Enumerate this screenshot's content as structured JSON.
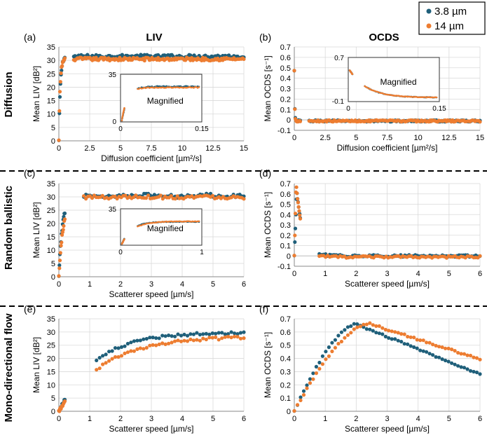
{
  "legend": [
    {
      "label": "3.8 µm",
      "color": "#1f5f7a"
    },
    {
      "label": "14 µm",
      "color": "#ed7d31"
    }
  ],
  "column_titles": {
    "liv": "LIV",
    "ocds": "OCDS"
  },
  "row_titles": [
    "Diffusion",
    "Random ballistic",
    "Mono-directional flow"
  ],
  "inset_label": "Magnified",
  "chart_data": [
    {
      "id": "a",
      "type": "scatter",
      "panel_label": "(a)",
      "row": 0,
      "col": 0,
      "xlabel": "Diffusion coefficient [µm²/s]",
      "ylabel": "Mean LIV [dB²]",
      "xlim": [
        0,
        15
      ],
      "ylim": [
        0,
        35
      ],
      "xticks": [
        "0",
        "2.5",
        "5",
        "7.5",
        "10",
        "12.5",
        "15"
      ],
      "xtick_values": [
        0,
        2.5,
        5,
        7.5,
        10,
        12.5,
        15
      ],
      "yticks": [
        "0",
        "5",
        "10",
        "15",
        "20",
        "25",
        "30",
        "35"
      ],
      "ytick_values": [
        0,
        5,
        10,
        15,
        20,
        25,
        30,
        35
      ],
      "series": [
        {
          "name": "3.8 µm",
          "curve": "sat",
          "params": [
            31.5,
            0.12,
            0.07,
            0
          ],
          "start": 0,
          "n": 150,
          "noise": 0.6
        },
        {
          "name": "14 µm",
          "curve": "sat",
          "params": [
            30.5,
            0.1,
            0,
            0
          ],
          "start": 0,
          "n": 150,
          "noise": 0.6
        }
      ],
      "inset": {
        "xlim": [
          0,
          0.15
        ],
        "ylim": [
          0,
          35
        ],
        "xticks": [
          "0",
          "0.15"
        ],
        "yticks": [
          "0",
          "35"
        ],
        "series": [
          {
            "name": "3.8 µm",
            "curve": "sat",
            "params": [
              31.5,
              0.012,
              0,
              0
            ],
            "start": 0,
            "n": 60,
            "noise": 0.5
          },
          {
            "name": "14 µm",
            "curve": "sat",
            "params": [
              30.5,
              0.01,
              0,
              0
            ],
            "start": 0,
            "n": 60,
            "noise": 0.5
          }
        ]
      }
    },
    {
      "id": "b",
      "type": "scatter",
      "panel_label": "(b)",
      "row": 0,
      "col": 1,
      "xlabel": "Diffusion coefficient [µm²/s]",
      "ylabel": "Mean OCDS [s⁻¹]",
      "xlim": [
        0,
        15
      ],
      "ylim": [
        -0.1,
        0.7
      ],
      "xticks": [
        "0",
        "2.5",
        "5",
        "7.5",
        "10",
        "12.5",
        "15"
      ],
      "xtick_values": [
        0,
        2.5,
        5,
        7.5,
        10,
        12.5,
        15
      ],
      "yticks": [
        "-0.1",
        "0",
        "0.1",
        "0.2",
        "0.3",
        "0.4",
        "0.5",
        "0.6",
        "0.7"
      ],
      "ytick_values": [
        -0.1,
        0,
        0.1,
        0.2,
        0.3,
        0.4,
        0.5,
        0.6,
        0.7
      ],
      "series": [
        {
          "name": "3.8 µm",
          "curve": "decay",
          "params": [
            0.47,
            0.03,
            -0.01,
            0
          ],
          "start": 0,
          "n": 150,
          "noise": 0.008
        },
        {
          "name": "14 µm",
          "curve": "decay",
          "params": [
            0.47,
            0.03,
            -0.01,
            0
          ],
          "start": 0,
          "n": 150,
          "noise": 0.008
        }
      ],
      "inset": {
        "xlim": [
          0,
          0.15
        ],
        "ylim": [
          -0.1,
          0.7
        ],
        "xticks": [
          "0",
          "0.15"
        ],
        "yticks": [
          "-0.1",
          "0.7"
        ],
        "series": [
          {
            "name": "3.8 µm",
            "curve": "decay",
            "params": [
              0.6,
              0.03,
              -0.04,
              0
            ],
            "start": 0,
            "n": 70,
            "noise": 0.006
          },
          {
            "name": "14 µm",
            "curve": "decay",
            "params": [
              0.6,
              0.03,
              -0.04,
              0
            ],
            "start": 0,
            "n": 70,
            "noise": 0.006
          }
        ]
      }
    },
    {
      "id": "c",
      "type": "scatter",
      "panel_label": "(c)",
      "row": 1,
      "col": 0,
      "xlabel": "Scatterer speed [µm/s]",
      "ylabel": "Mean LIV [dB²]",
      "xlim": [
        0,
        6
      ],
      "ylim": [
        0,
        35
      ],
      "xticks": [
        "0",
        "1",
        "2",
        "3",
        "4",
        "5",
        "6"
      ],
      "xtick_values": [
        0,
        1,
        2,
        3,
        4,
        5,
        6
      ],
      "yticks": [
        "0",
        "5",
        "10",
        "15",
        "20",
        "25",
        "30",
        "35"
      ],
      "ytick_values": [
        0,
        5,
        10,
        15,
        20,
        25,
        30,
        35
      ],
      "series": [
        {
          "name": "3.8 µm",
          "curve": "sat",
          "params": [
            30.5,
            0.12,
            0.25,
            0
          ],
          "start": 0,
          "n": 90,
          "noise": 0.7
        },
        {
          "name": "14 µm",
          "curve": "sat",
          "params": [
            30.0,
            0.15,
            0.08,
            0
          ],
          "start": 0,
          "n": 90,
          "noise": 0.7
        }
      ],
      "inset": {
        "xlim": [
          0,
          1
        ],
        "ylim": [
          0,
          35
        ],
        "xticks": [
          "0",
          "1"
        ],
        "yticks": [
          "35"
        ],
        "series": [
          {
            "name": "3.8 µm",
            "curve": "sat",
            "params": [
              29.0,
              0.12,
              0,
              0
            ],
            "start": 0,
            "n": 60,
            "noise": 0.4
          },
          {
            "name": "14 µm",
            "curve": "sat",
            "params": [
              29.5,
              0.14,
              0,
              0
            ],
            "start": 0,
            "n": 60,
            "noise": 0.4
          }
        ]
      }
    },
    {
      "id": "d",
      "type": "scatter",
      "panel_label": "(d)",
      "row": 1,
      "col": 1,
      "xlabel": "Scatterer speed [µm/s]",
      "ylabel": "Mean OCDS [s⁻¹]",
      "xlim": [
        0,
        6
      ],
      "ylim": [
        -0.1,
        0.7
      ],
      "xticks": [
        "0",
        "1",
        "2",
        "3",
        "4",
        "5",
        "6"
      ],
      "xtick_values": [
        0,
        1,
        2,
        3,
        4,
        5,
        6
      ],
      "yticks": [
        "-0.1",
        "0",
        "0.1",
        "0.2",
        "0.3",
        "0.4",
        "0.5",
        "0.6",
        "0.7"
      ],
      "ytick_values": [
        -0.1,
        0,
        0.1,
        0.2,
        0.3,
        0.4,
        0.5,
        0.6,
        0.7
      ],
      "series": [
        {
          "name": "3.8 µm",
          "curve": "decay",
          "params": [
            0.62,
            0.22,
            0.0,
            0.08
          ],
          "start": 0.02,
          "n": 90,
          "noise": 0.01
        },
        {
          "name": "14 µm",
          "curve": "decay",
          "params": [
            0.7,
            0.2,
            -0.01,
            0.06
          ],
          "start": 0.02,
          "n": 90,
          "noise": 0.01
        }
      ]
    },
    {
      "id": "e",
      "type": "scatter",
      "panel_label": "(e)",
      "row": 2,
      "col": 0,
      "xlabel": "Scatterer speed [µm/s]",
      "ylabel": "Mean LIV [dB²]",
      "xlim": [
        0,
        6
      ],
      "ylim": [
        0,
        35
      ],
      "xticks": [
        "0",
        "1",
        "2",
        "3",
        "4",
        "5",
        "6"
      ],
      "xtick_values": [
        0,
        1,
        2,
        3,
        4,
        5,
        6
      ],
      "yticks": [
        "0",
        "5",
        "10",
        "15",
        "20",
        "25",
        "30",
        "35"
      ],
      "ytick_values": [
        0,
        5,
        10,
        15,
        20,
        25,
        30,
        35
      ],
      "series": [
        {
          "name": "3.8 µm",
          "curve": "sat",
          "params": [
            30.0,
            1.2,
            0,
            0
          ],
          "start": 0,
          "n": 60,
          "noise": 0.5
        },
        {
          "name": "14 µm",
          "curve": "sat",
          "params": [
            28.5,
            1.5,
            0,
            0
          ],
          "start": 0,
          "n": 60,
          "noise": 0.5
        }
      ]
    },
    {
      "id": "f",
      "type": "scatter",
      "panel_label": "(f)",
      "row": 2,
      "col": 1,
      "xlabel": "Scatterer speed [µm/s]",
      "ylabel": "Mean OCDS [s⁻¹]",
      "xlim": [
        0,
        6
      ],
      "ylim": [
        0,
        0.7
      ],
      "xticks": [
        "0",
        "1",
        "2",
        "3",
        "4",
        "5",
        "6"
      ],
      "xtick_values": [
        0,
        1,
        2,
        3,
        4,
        5,
        6
      ],
      "yticks": [
        "0",
        "0.1",
        "0.2",
        "0.3",
        "0.4",
        "0.5",
        "0.6",
        "0.7"
      ],
      "ytick_values": [
        0,
        0.1,
        0.2,
        0.3,
        0.4,
        0.5,
        0.6,
        0.7
      ],
      "series": [
        {
          "name": "3.8 µm",
          "curve": "peak",
          "params": [
            0.66,
            2.0,
            0.3,
            0.095
          ],
          "start": 0,
          "n": 60,
          "noise": 0.006
        },
        {
          "name": "14 µm",
          "curve": "peak",
          "params": [
            0.665,
            2.4,
            0.37,
            0.075
          ],
          "start": 0,
          "n": 60,
          "noise": 0.006
        }
      ]
    }
  ]
}
